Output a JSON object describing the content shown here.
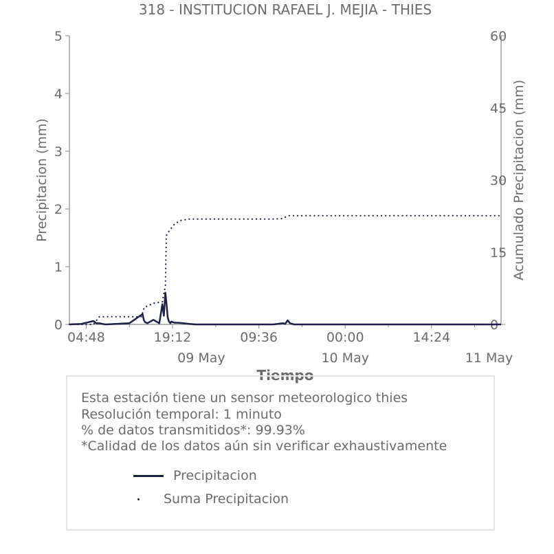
{
  "chart_data": {
    "type": "line",
    "title": "318 - INSTITUCION RAFAEL J. MEJIA - THIES",
    "xlabel": "Tiempo",
    "ylabel": "Precipitacion (mm)",
    "y2label": "Acumulado Precipitacion (mm)",
    "ylim": [
      0,
      5
    ],
    "y2lim": [
      0,
      60
    ],
    "y_ticks": [
      "0",
      "1",
      "2",
      "3",
      "4",
      "5"
    ],
    "y2_ticks": [
      "0",
      "15",
      "30",
      "45",
      "60"
    ],
    "x_ticks": [
      "04:48",
      "19:12",
      "09:36",
      "00:00",
      "14:24"
    ],
    "x_date_labels": [
      "09 May",
      "10 May",
      "11 May"
    ],
    "grid": false,
    "series": [
      {
        "name": "Precipitacion",
        "axis": "left",
        "style": "solid",
        "color": "#1e1f45",
        "x": [
          "05-08 02:00",
          "05-08 04:00",
          "05-08 06:00",
          "05-08 06:30",
          "05-08 07:00",
          "05-08 08:00",
          "05-08 12:00",
          "05-08 14:12",
          "05-08 14:24",
          "05-08 14:36",
          "05-08 15:00",
          "05-08 16:00",
          "05-08 17:00",
          "05-08 17:30",
          "05-08 17:45",
          "05-08 18:00",
          "05-08 18:15",
          "05-08 18:24",
          "05-08 18:36",
          "05-08 18:50",
          "05-08 19:00",
          "05-08 19:30",
          "05-08 20:00",
          "05-08 21:00",
          "05-08 22:00",
          "05-08 23:00",
          "05-09 02:00",
          "05-09 12:00",
          "05-09 13:36",
          "05-09 14:00",
          "05-09 14:24",
          "05-09 14:48",
          "05-09 15:30",
          "05-10 12:00",
          "05-11 02:00"
        ],
        "values": [
          0.0,
          0.01,
          0.06,
          0.02,
          0.02,
          0.0,
          0.02,
          0.18,
          0.08,
          0.04,
          0.02,
          0.08,
          0.02,
          0.35,
          0.15,
          0.55,
          0.3,
          0.12,
          0.05,
          0.02,
          0.05,
          0.03,
          0.03,
          0.02,
          0.01,
          0.0,
          0.0,
          0.0,
          0.02,
          0.01,
          0.07,
          0.02,
          0.0,
          0.0,
          0.0
        ]
      },
      {
        "name": "Suma Precipitacion",
        "axis": "right",
        "style": "dotted",
        "color": "#1e1f45",
        "x": [
          "05-08 02:00",
          "05-08 06:00",
          "05-08 07:00",
          "05-08 14:00",
          "05-08 14:30",
          "05-08 15:00",
          "05-08 16:00",
          "05-08 17:30",
          "05-08 18:00",
          "05-08 18:10",
          "05-08 18:40",
          "05-08 19:30",
          "05-08 20:30",
          "05-08 22:00",
          "05-09 00:00",
          "05-09 08:00",
          "05-09 12:00",
          "05-09 13:30",
          "05-09 14:30",
          "05-09 20:00",
          "05-10 12:00",
          "05-11 02:00"
        ],
        "values": [
          0,
          0,
          1.6,
          1.6,
          3.6,
          3.8,
          4.4,
          4.7,
          8.0,
          18.5,
          19.5,
          20.8,
          21.6,
          21.9,
          21.9,
          21.9,
          21.9,
          22.0,
          22.6,
          22.6,
          22.6,
          22.6
        ]
      }
    ],
    "legend": {
      "position": "bottom",
      "entries": [
        "Precipitacion",
        "Suma Precipitacion"
      ]
    }
  },
  "info": {
    "line1": "Esta estación tiene un sensor meteorologico thies",
    "line2": "Resolución temporal: 1 minuto",
    "line3": "% de datos transmitidos*: 99.93%",
    "line4": "*Calidad de los datos aún sin verificar exhaustivamente"
  },
  "colors": {
    "series": "#1e1f45",
    "text": "#6b6b6b",
    "axis": "#8a8a8a",
    "box_border": "#e3e3e3"
  }
}
